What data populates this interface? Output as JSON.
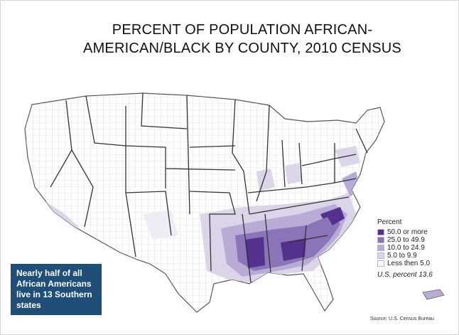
{
  "title": "PERCENT OF POPULATION AFRICAN-AMERICAN/BLACK BY COUNTY, 2010 CENSUS",
  "callout": "Nearly half of all African Americans live in 13 Southern states",
  "legend": {
    "title": "Percent",
    "items": [
      {
        "label": "50.0 or more",
        "color": "#54318f"
      },
      {
        "label": "25.0 to 49.9",
        "color": "#8c74b8"
      },
      {
        "label": "10.0 to 24.9",
        "color": "#b9abd6"
      },
      {
        "label": "5.0 to 9.9",
        "color": "#dcd5ea"
      },
      {
        "label": "Less then 5.0",
        "color": "#ffffff"
      }
    ],
    "us_percent": "U.S. percent 13.6"
  },
  "source": "Source: U.S. Census Bureau"
}
